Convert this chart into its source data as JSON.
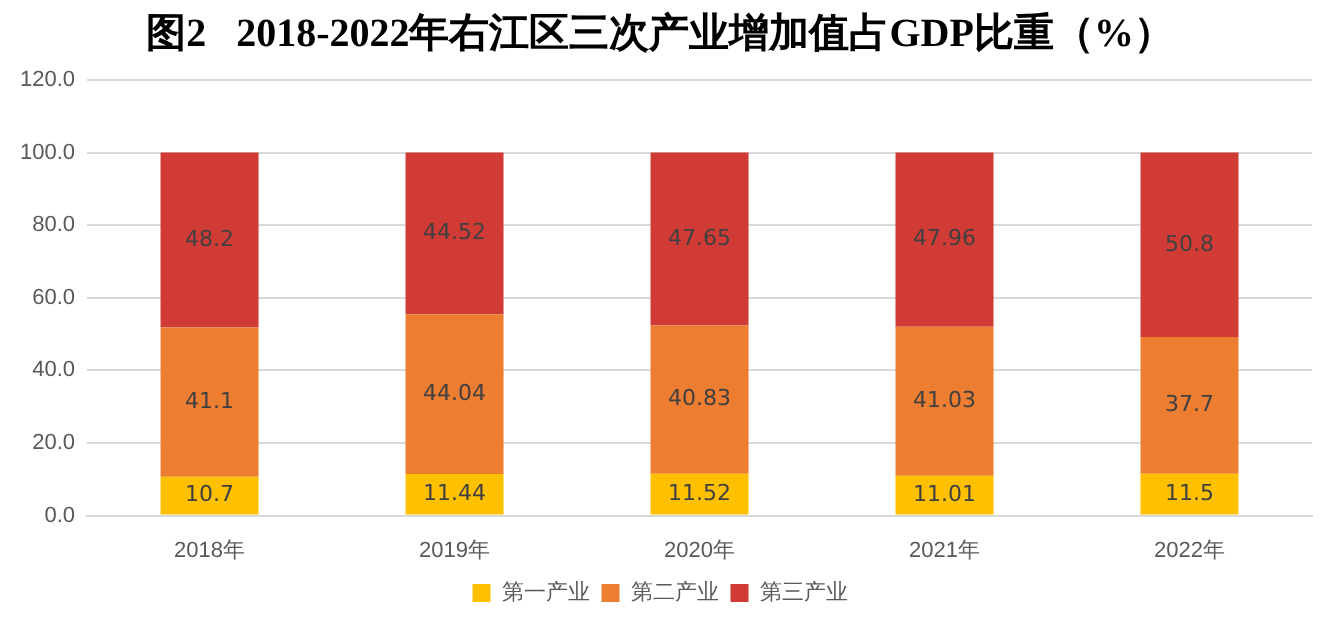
{
  "chart_data": {
    "type": "bar",
    "title": "图2   2018-2022年右江区三次产业增加值占GDP比重（%）",
    "categories": [
      "2018年",
      "2019年",
      "2020年",
      "2021年",
      "2022年"
    ],
    "series": [
      {
        "name": "第一产业",
        "color": "#ffc000",
        "values": [
          10.7,
          11.44,
          11.52,
          11.01,
          11.5
        ]
      },
      {
        "name": "第二产业",
        "color": "#ed7d31",
        "values": [
          41.1,
          44.04,
          40.83,
          41.03,
          37.7
        ]
      },
      {
        "name": "第三产业",
        "color": "#d13b36",
        "values": [
          48.2,
          44.52,
          47.65,
          47.96,
          50.8
        ]
      }
    ],
    "stacked": true,
    "data_labels": true,
    "grid": "y",
    "legend": "bottom",
    "ylim": [
      0,
      120
    ],
    "yticks": [
      {
        "value": 0,
        "label": "0.0"
      },
      {
        "value": 20,
        "label": "20.0"
      },
      {
        "value": 40,
        "label": "40.0"
      },
      {
        "value": 60,
        "label": "60.0"
      },
      {
        "value": 80,
        "label": "80.0"
      },
      {
        "value": 100,
        "label": "100.0"
      },
      {
        "value": 120,
        "label": "120.0"
      }
    ]
  }
}
